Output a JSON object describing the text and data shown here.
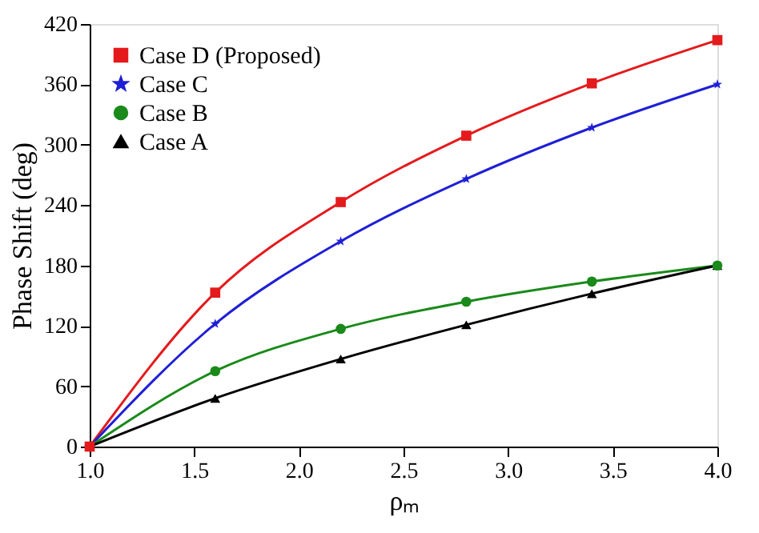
{
  "chart_data": {
    "type": "line",
    "xlabel": "ρₘ",
    "ylabel": "Phase Shift (deg)",
    "x": [
      1.0,
      1.6,
      2.2,
      2.8,
      3.4,
      4.0
    ],
    "series": [
      {
        "name": "Case D (Proposed)",
        "color": "#e41a1c",
        "marker": "square",
        "values": [
          0,
          153,
          243,
          309,
          361,
          404
        ]
      },
      {
        "name": "Case C",
        "color": "#1f1fd6",
        "marker": "star",
        "values": [
          0,
          122,
          204,
          266,
          317,
          360
        ]
      },
      {
        "name": "Case B",
        "color": "#1a8a1a",
        "marker": "circle",
        "values": [
          0,
          75,
          117,
          144,
          164,
          180
        ]
      },
      {
        "name": "Case A",
        "color": "#000000",
        "marker": "triangle",
        "values": [
          0,
          48,
          87,
          121,
          152,
          180
        ]
      }
    ],
    "xlim": [
      1.0,
      4.0
    ],
    "xticks": [
      {
        "value": 1.0,
        "label": "1.0"
      },
      {
        "value": 1.5,
        "label": "1.5"
      },
      {
        "value": 2.0,
        "label": "2.0"
      },
      {
        "value": 2.5,
        "label": "2.5"
      },
      {
        "value": 3.0,
        "label": "3.0"
      },
      {
        "value": 3.5,
        "label": "3.5"
      },
      {
        "value": 4.0,
        "label": "4.0"
      }
    ],
    "ylim": [
      0,
      420
    ],
    "yticks": [
      0,
      60,
      120,
      180,
      240,
      300,
      360,
      420
    ],
    "grid": false,
    "legend": "top left",
    "line_style": "solid"
  }
}
